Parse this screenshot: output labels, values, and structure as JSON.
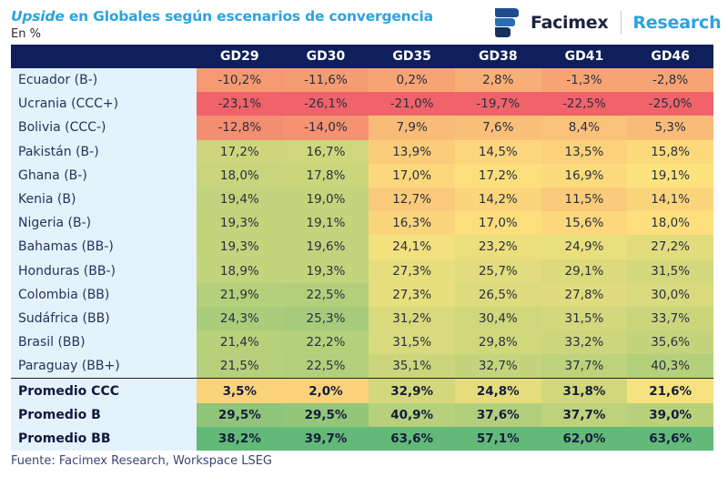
{
  "header": {
    "title_italic": "Upside",
    "title_rest": " en Globales según escenarios de convergencia",
    "subtitle": "En %",
    "logo": {
      "icon": "facimex-logo-icon",
      "name": "Facimex",
      "division": "Research"
    }
  },
  "footer": {
    "source": "Fuente: Facimex Research, Workspace LSEG"
  },
  "colors": {
    "header_bg": "#0f1f5c",
    "label_bg": "#e4f2fc",
    "title_accent": "#2aa4e0",
    "scale_low": "#f0636a",
    "scale_mid": "#fde47e",
    "scale_high": "#63b978"
  },
  "chart_data": {
    "type": "heatmap",
    "title": "Upside en Globales según escenarios de convergencia",
    "subtitle": "En %",
    "unit": "%",
    "columns": [
      "GD29",
      "GD30",
      "GD35",
      "GD38",
      "GD41",
      "GD46"
    ],
    "rows": [
      {
        "label": "Ecuador (B-)",
        "values": [
          -10.2,
          -11.6,
          0.2,
          2.8,
          -1.3,
          -2.8
        ]
      },
      {
        "label": "Ucrania (CCC+)",
        "values": [
          -23.1,
          -26.1,
          -21.0,
          -19.7,
          -22.5,
          -25.0
        ]
      },
      {
        "label": "Bolivia (CCC-)",
        "values": [
          -12.8,
          -14.0,
          7.9,
          7.6,
          8.4,
          5.3
        ]
      },
      {
        "label": "Pakistán (B-)",
        "values": [
          17.2,
          16.7,
          13.9,
          14.5,
          13.5,
          15.8
        ]
      },
      {
        "label": "Ghana (B-)",
        "values": [
          18.0,
          17.8,
          17.0,
          17.2,
          16.9,
          19.1
        ]
      },
      {
        "label": "Kenia (B)",
        "values": [
          19.4,
          19.0,
          12.7,
          14.2,
          11.5,
          14.1
        ]
      },
      {
        "label": "Nigeria (B-)",
        "values": [
          19.3,
          19.1,
          16.3,
          17.0,
          15.6,
          18.0
        ]
      },
      {
        "label": "Bahamas (BB-)",
        "values": [
          19.3,
          19.6,
          24.1,
          23.2,
          24.9,
          27.2
        ]
      },
      {
        "label": "Honduras (BB-)",
        "values": [
          18.9,
          19.3,
          27.3,
          25.7,
          29.1,
          31.5
        ]
      },
      {
        "label": "Colombia (BB)",
        "values": [
          21.9,
          22.5,
          27.3,
          26.5,
          27.8,
          30.0
        ]
      },
      {
        "label": "Sudáfrica (BB)",
        "values": [
          24.3,
          25.3,
          31.2,
          30.4,
          31.5,
          33.7
        ]
      },
      {
        "label": "Brasil (BB)",
        "values": [
          21.4,
          22.2,
          31.5,
          29.8,
          33.2,
          35.6
        ]
      },
      {
        "label": "Paraguay (BB+)",
        "values": [
          21.5,
          22.5,
          35.1,
          32.7,
          37.7,
          40.3
        ]
      }
    ],
    "averages": [
      {
        "label": "Promedio CCC",
        "values": [
          3.5,
          2.0,
          32.9,
          24.8,
          31.8,
          21.6
        ]
      },
      {
        "label": "Promedio B",
        "values": [
          29.5,
          29.5,
          40.9,
          37.6,
          37.7,
          39.0
        ]
      },
      {
        "label": "Promedio BB",
        "values": [
          38.2,
          39.7,
          63.6,
          57.1,
          62.0,
          63.6
        ]
      }
    ],
    "color_scale": "red (low) - yellow (mid) - green (high), per column",
    "source": "Fuente: Facimex Research, Workspace LSEG"
  }
}
